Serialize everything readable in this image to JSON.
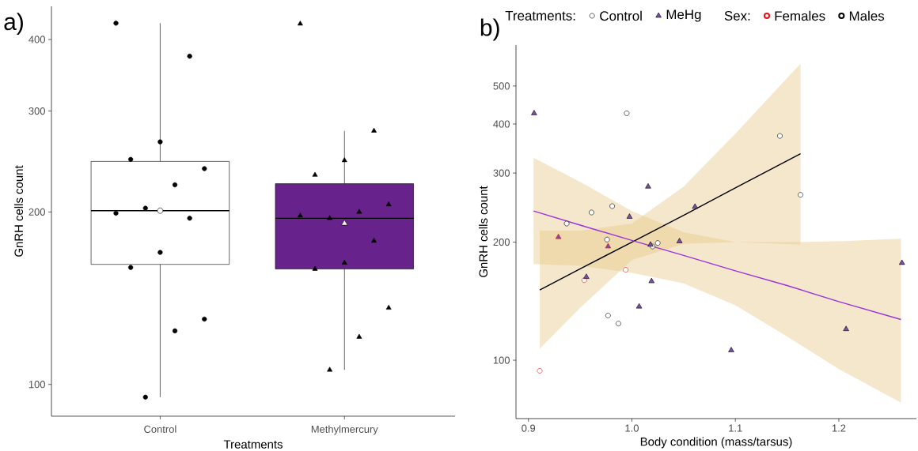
{
  "chart_data": [
    {
      "type": "box",
      "title": "a)",
      "xlabel": "Treatments",
      "ylabel": "GnRH cells count",
      "categories": [
        "Control",
        "Methylmercury"
      ],
      "log": "y",
      "ylim": [
        88,
        457
      ],
      "yticks": [
        100,
        200,
        300,
        400
      ],
      "colors": [
        "#ffffff",
        "#68228b"
      ],
      "boxes": [
        {
          "low": 95,
          "q1": 162,
          "median": 201,
          "q3": 245,
          "high": 427,
          "mean": 201
        },
        {
          "low": 106,
          "q1": 159,
          "median": 195,
          "q3": 224,
          "high": 277,
          "mean": 191
        }
      ],
      "series": [
        {
          "type": "scatter",
          "marker": "circle",
          "color": "#000000",
          "x": [
            "Control",
            "Control",
            "Control",
            "Control",
            "Control",
            "Control",
            "Control",
            "Control",
            "Control",
            "Control",
            "Control",
            "Control",
            "Control",
            "Control"
          ],
          "values": [
            427,
            374,
            265,
            247,
            238,
            223,
            203,
            199,
            195,
            170,
            160,
            130,
            124,
            95
          ]
        },
        {
          "type": "scatter",
          "marker": "triangle",
          "color": "#000000",
          "x": [
            "Methylmercury",
            "Methylmercury",
            "Methylmercury",
            "Methylmercury",
            "Methylmercury",
            "Methylmercury",
            "Methylmercury",
            "Methylmercury",
            "Methylmercury",
            "Methylmercury",
            "Methylmercury",
            "Methylmercury",
            "Methylmercury",
            "Methylmercury"
          ],
          "values": [
            426,
            277,
            246,
            232,
            206,
            200,
            195,
            197,
            178,
            163,
            159,
            136,
            121,
            106
          ]
        }
      ]
    },
    {
      "type": "scatter",
      "title": "b)",
      "xlabel": "Body condition (mass/tarsus)",
      "ylabel": "GnRH cells count",
      "log": "y",
      "xlim": [
        0.888,
        1.275
      ],
      "xticks": [
        {
          "value": 0.9,
          "label": "0.9"
        },
        {
          "value": 1.0,
          "label": "1.0"
        },
        {
          "value": 1.1,
          "label": "1.1"
        },
        {
          "value": 1.2,
          "label": "1.2"
        }
      ],
      "ylim": [
        71,
        636
      ],
      "yticks": [
        100,
        200,
        300,
        400,
        500
      ],
      "legend": "top",
      "legend_title": "Treatments:",
      "annotations": [
        "Sex:"
      ],
      "series": [
        {
          "type": "line",
          "color": "#000000",
          "x": [
            0.911,
            0.95,
            1.0,
            1.05,
            1.1,
            1.163
          ],
          "values": [
            151,
            171,
            200,
            234,
            275,
            336
          ],
          "lower": [
            107,
            136,
            180,
            198,
            200,
            197
          ],
          "upper": [
            214,
            214,
            223,
            277,
            378,
            570
          ]
        },
        {
          "type": "line",
          "color": "#9933dd",
          "x": [
            0.905,
            0.95,
            1.0,
            1.05,
            1.1,
            1.15,
            1.2,
            1.26
          ],
          "values": [
            240,
            221,
            202,
            185,
            169,
            155,
            141,
            127
          ],
          "lower": [
            176,
            174,
            167,
            157,
            138,
            115,
            95,
            78
          ],
          "upper": [
            328,
            285,
            240,
            212,
            200,
            200,
            201,
            204
          ]
        },
        {
          "name": "Control",
          "type": "scatter",
          "marker": "circle",
          "color": "#ffffff",
          "x": [
            0.995,
            1.143,
            1.163,
            0.981,
            0.961,
            0.937,
            0.976,
            1.02,
            1.025,
            0.977,
            0.987,
            0.954,
            0.994,
            0.911
          ],
          "values": [
            426,
            373,
            264,
            247,
            238,
            223,
            203,
            195,
            199,
            130,
            124,
            160,
            170,
            94
          ],
          "colors": [
            "#000000",
            "#000000",
            "#000000",
            "#000000",
            "#000000",
            "#000000",
            "#000000",
            "#000000",
            "#000000",
            "#000000",
            "#000000",
            "#e8101a",
            "#e8101a",
            "#e8101a"
          ]
        },
        {
          "name": "MeHg",
          "type": "scatter",
          "marker": "triangle",
          "color": "#7b4fa8",
          "x": [
            0.9055,
            1.0157,
            0.9977,
            1.061,
            1.018,
            1.046,
            0.956,
            1.019,
            1.007,
            1.096,
            1.207,
            1.261,
            0.929,
            0.977
          ],
          "values": [
            426,
            277,
            232,
            246,
            197,
            201,
            163,
            159,
            137,
            106,
            120,
            177,
            206,
            195
          ],
          "colors": [
            "#000000",
            "#000000",
            "#000000",
            "#000000",
            "#000000",
            "#000000",
            "#000000",
            "#000000",
            "#000000",
            "#000000",
            "#000000",
            "#000000",
            "#e8101a",
            "#e8101a"
          ]
        },
        {
          "name": "Females",
          "type": "scatter",
          "marker": "circle",
          "color": "#e8101a"
        },
        {
          "name": "Males",
          "type": "scatter",
          "marker": "circle",
          "color": "#000000"
        }
      ]
    }
  ]
}
